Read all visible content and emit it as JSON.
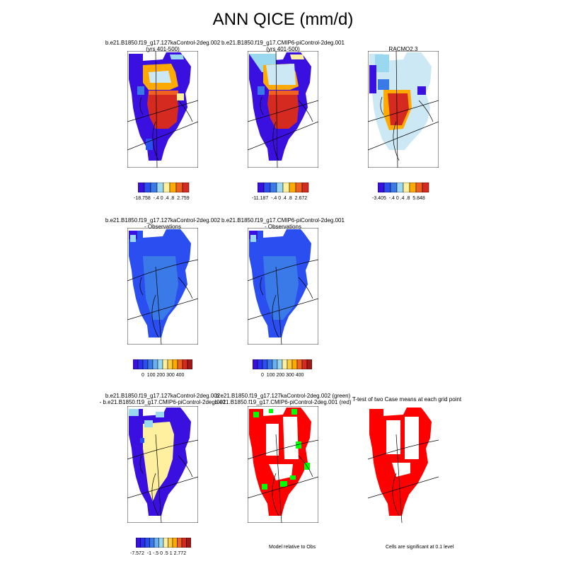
{
  "title": "ANN QICE (mm/d)",
  "panels": {
    "r1p1": {
      "line1": "b.e21.B1850.f19_g17.127kaControl-2deg.002",
      "line2": "(yrs 401-500)"
    },
    "r1p2": {
      "line1": "b.e21.B1850.f19_g17.CMIP6-piControl-2deg.001",
      "line2": "(yrs 401-500)"
    },
    "r1p3": {
      "line1": "RACMO2.3"
    },
    "r2p1": {
      "line1": "b.e21.B1850.f19_g17.127kaControl-2deg.002",
      "line2": "- Observations"
    },
    "r2p2": {
      "line1": "b.e21.B1850.f19_g17.CMIP6-piControl-2deg.001",
      "line2": "- Observations"
    },
    "r3p1": {
      "line1": "b.e21.B1850.f19_g17.127kaControl-2deg.002",
      "line2": "- b.e21.B1850.f19_g17.CMIP6-piControl-2deg.001"
    },
    "r3p2": {
      "line1": "b.e21.B1850.f19_g17.127kaControl-2deg.002 (green)",
      "line2": "b.e21.B1850.f19_g17.CMIP6-piControl-2deg.001 (red)"
    },
    "r3p3": {
      "line1": "T-test of two Case means at each grid point"
    }
  },
  "colorbars": {
    "cb1": {
      "labels": [
        "-18.758",
        "-.4",
        "0",
        ".4",
        ".8",
        "2.759"
      ]
    },
    "cb2": {
      "labels": [
        "-11.187",
        "-.4",
        "0",
        ".4",
        ".8",
        "2.672"
      ]
    },
    "cb3": {
      "labels": [
        "-3.405",
        "-.4",
        "0",
        ".4",
        ".8",
        "5.848"
      ]
    },
    "cb4": {
      "labels": [
        "0",
        "100",
        "200",
        "300",
        "400"
      ]
    },
    "cb5": {
      "labels": [
        "0",
        "100",
        "200",
        "300",
        "400"
      ]
    },
    "cb6": {
      "labels": [
        "-7.572",
        "-1",
        "-.5",
        "0",
        ".5",
        "1",
        "2.772"
      ]
    }
  },
  "notes": {
    "model_relative": "Model relative to Obs",
    "significance": "Cells are significant at 0.1 level"
  },
  "colors": {
    "deep_blue": "#3a10e0",
    "blue": "#2a4ef0",
    "mid_blue": "#3a7ae8",
    "light_blue": "#9ad8f0",
    "pale_blue": "#cce8f4",
    "yellow": "#fff0a0",
    "orange": "#ffaa00",
    "red_orange": "#f06020",
    "red": "#d52a20",
    "sig_red": "#ff0000",
    "sig_green": "#00ff00"
  }
}
